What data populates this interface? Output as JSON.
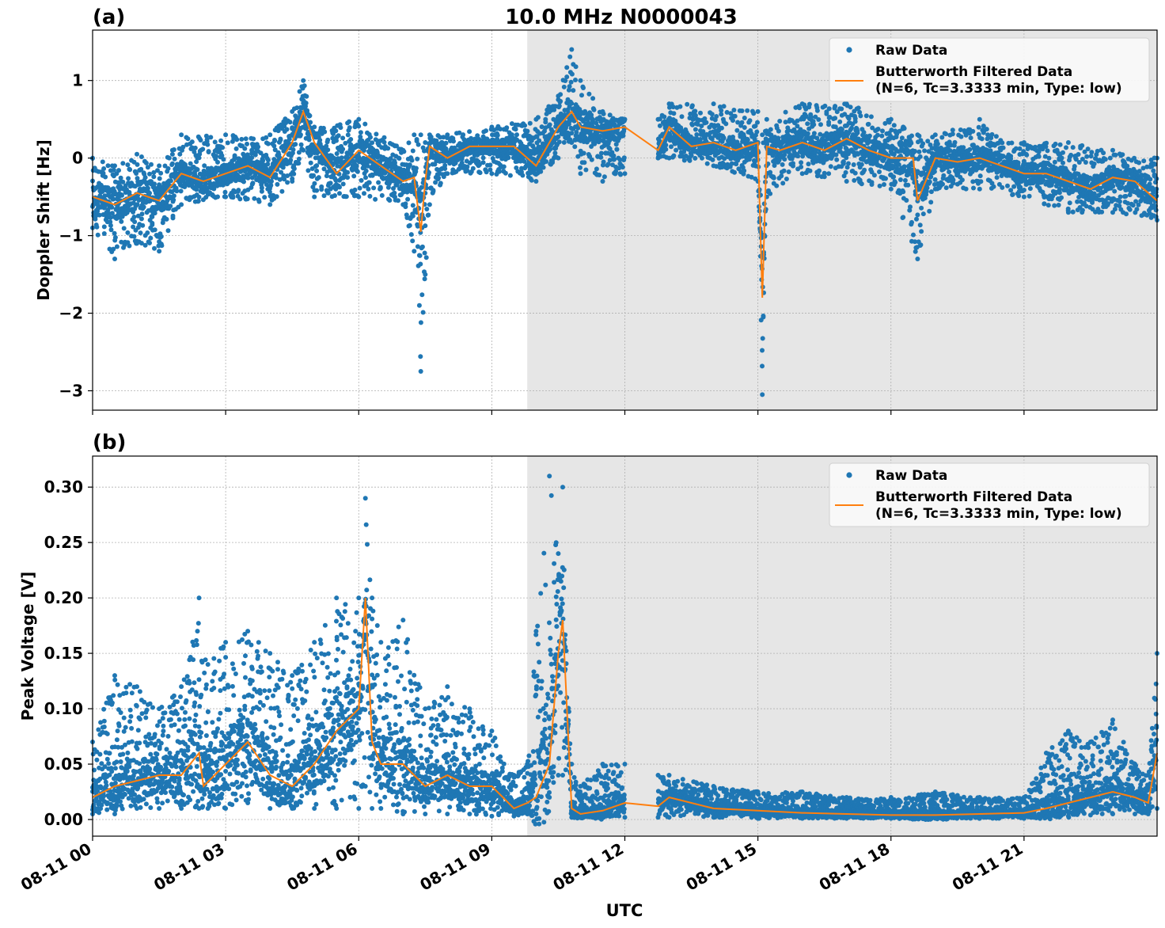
{
  "figure": {
    "title": "10.0 MHz N0000043",
    "xlabel": "UTC"
  },
  "colors": {
    "raw": "#1f77b4",
    "filtered": "#ff7f0e",
    "shade": "#e6e6e6",
    "grid": "#b0b0b0"
  },
  "chart_data": [
    {
      "type": "scatter",
      "panel_label": "(a)",
      "ylabel": "Doppler Shift [Hz]",
      "xlim_hours": [
        0,
        24.0
      ],
      "ylim": [
        -3.25,
        1.65
      ],
      "grid": true,
      "legend_position": "top-right",
      "x_ticks": [
        0,
        3,
        6,
        9,
        12,
        15,
        18,
        21
      ],
      "y_ticks": [
        1,
        0,
        -1,
        -2,
        -3
      ],
      "y_tick_labels": [
        "1",
        "0",
        "−1",
        "−2",
        "−3"
      ],
      "shaded_interval_hours": [
        9.8,
        24.0
      ],
      "data_gap_hours": [
        12.0,
        12.75
      ],
      "series": [
        {
          "name": "Raw Data",
          "style": "dots"
        },
        {
          "name": "Butterworth Filtered Data\n(N=6, Tc=3.3333 min, Type: low)",
          "style": "line"
        }
      ],
      "filtered_hours": [
        0.0,
        0.5,
        1.0,
        1.5,
        2.0,
        2.5,
        3.0,
        3.5,
        4.0,
        4.5,
        4.75,
        5.0,
        5.5,
        6.0,
        6.5,
        7.0,
        7.25,
        7.4,
        7.5,
        7.6,
        8.0,
        8.5,
        9.0,
        9.5,
        10.0,
        10.5,
        10.8,
        11.0,
        11.5,
        12.0,
        12.75,
        13.0,
        13.5,
        14.0,
        14.5,
        15.0,
        15.1,
        15.2,
        15.5,
        16.0,
        16.5,
        17.0,
        17.5,
        18.0,
        18.5,
        18.6,
        19.0,
        19.5,
        20.0,
        20.5,
        21.0,
        21.5,
        22.0,
        22.5,
        23.0,
        23.5,
        24.0
      ],
      "filtered_values": [
        -0.5,
        -0.6,
        -0.45,
        -0.55,
        -0.2,
        -0.3,
        -0.2,
        -0.1,
        -0.25,
        0.2,
        0.6,
        0.2,
        -0.2,
        0.1,
        -0.1,
        -0.3,
        -0.25,
        -0.95,
        -0.3,
        0.15,
        0.0,
        0.15,
        0.15,
        0.15,
        -0.1,
        0.4,
        0.6,
        0.4,
        0.35,
        0.4,
        0.1,
        0.4,
        0.15,
        0.2,
        0.1,
        0.2,
        -1.8,
        0.15,
        0.1,
        0.2,
        0.1,
        0.25,
        0.1,
        0.0,
        0.0,
        -0.55,
        0.0,
        -0.05,
        0.0,
        -0.1,
        -0.2,
        -0.2,
        -0.3,
        -0.4,
        -0.25,
        -0.3,
        -0.55
      ],
      "raw_envelope_hours": [
        0.0,
        0.5,
        1.0,
        1.5,
        2.0,
        3.0,
        4.0,
        4.5,
        4.75,
        5.0,
        6.0,
        7.0,
        7.25,
        7.4,
        7.5,
        7.6,
        8.0,
        9.0,
        10.0,
        10.5,
        10.8,
        11.0,
        11.5,
        12.0,
        12.75,
        13.0,
        14.0,
        15.0,
        15.1,
        15.2,
        16.0,
        17.0,
        18.0,
        18.6,
        19.0,
        20.0,
        21.0,
        22.0,
        23.0,
        24.0
      ],
      "raw_envelope_max": [
        0.0,
        -0.1,
        0.05,
        -0.1,
        0.3,
        0.3,
        0.3,
        0.6,
        1.0,
        0.4,
        0.5,
        0.1,
        0.3,
        0.3,
        0.2,
        0.3,
        0.3,
        0.4,
        0.5,
        0.8,
        1.4,
        1.0,
        0.6,
        0.5,
        0.5,
        0.7,
        0.7,
        0.6,
        0.3,
        0.5,
        0.7,
        0.7,
        0.5,
        0.3,
        0.3,
        0.5,
        0.2,
        0.2,
        0.1,
        0.0
      ],
      "raw_envelope_min": [
        -0.9,
        -1.3,
        -1.1,
        -1.2,
        -0.6,
        -0.5,
        -0.6,
        -0.3,
        0.1,
        -0.5,
        -0.5,
        -0.6,
        -1.2,
        -2.75,
        -1.5,
        -0.6,
        -0.2,
        -0.2,
        -0.3,
        0.0,
        0.2,
        -0.2,
        -0.3,
        -0.2,
        0.0,
        0.0,
        -0.1,
        -0.3,
        -3.05,
        -0.5,
        -0.2,
        -0.3,
        -0.4,
        -1.3,
        -0.4,
        -0.4,
        -0.5,
        -0.7,
        -0.7,
        -0.8
      ]
    },
    {
      "type": "scatter",
      "panel_label": "(b)",
      "ylabel": "Peak Voltage [V]",
      "xlim_hours": [
        0,
        24.0
      ],
      "ylim": [
        -0.015,
        0.328
      ],
      "grid": true,
      "legend_position": "top-right",
      "x_ticks": [
        0,
        3,
        6,
        9,
        12,
        15,
        18,
        21
      ],
      "x_tick_labels": [
        "08-11 00",
        "08-11 03",
        "08-11 06",
        "08-11 09",
        "08-11 12",
        "08-11 15",
        "08-11 18",
        "08-11 21"
      ],
      "y_ticks": [
        0.0,
        0.05,
        0.1,
        0.15,
        0.2,
        0.25,
        0.3
      ],
      "y_tick_labels": [
        "0.00",
        "0.05",
        "0.10",
        "0.15",
        "0.20",
        "0.25",
        "0.30"
      ],
      "shaded_interval_hours": [
        9.8,
        24.0
      ],
      "data_gap_hours": [
        12.0,
        12.75
      ],
      "series": [
        {
          "name": "Raw Data",
          "style": "dots"
        },
        {
          "name": "Butterworth Filtered Data\n(N=6, Tc=3.3333 min, Type: low)",
          "style": "line"
        }
      ],
      "filtered_hours": [
        0.0,
        0.5,
        1.0,
        1.5,
        2.0,
        2.4,
        2.5,
        3.0,
        3.5,
        4.0,
        4.5,
        5.0,
        5.5,
        6.0,
        6.15,
        6.3,
        6.5,
        7.0,
        7.5,
        8.0,
        8.5,
        9.0,
        9.5,
        9.8,
        10.0,
        10.3,
        10.5,
        10.6,
        10.8,
        11.0,
        11.5,
        12.0,
        12.75,
        13.0,
        14.0,
        15.0,
        16.0,
        17.0,
        18.0,
        19.0,
        20.0,
        21.0,
        21.5,
        22.0,
        22.5,
        23.0,
        23.5,
        23.8,
        24.0
      ],
      "filtered_values": [
        0.02,
        0.03,
        0.035,
        0.04,
        0.04,
        0.06,
        0.03,
        0.05,
        0.07,
        0.04,
        0.03,
        0.05,
        0.08,
        0.1,
        0.2,
        0.07,
        0.05,
        0.05,
        0.03,
        0.04,
        0.03,
        0.03,
        0.01,
        0.015,
        0.02,
        0.05,
        0.15,
        0.18,
        0.01,
        0.005,
        0.008,
        0.015,
        0.012,
        0.02,
        0.01,
        0.008,
        0.006,
        0.005,
        0.004,
        0.004,
        0.005,
        0.006,
        0.01,
        0.015,
        0.02,
        0.025,
        0.02,
        0.015,
        0.06
      ],
      "raw_envelope_hours": [
        0.0,
        0.5,
        1.0,
        1.5,
        2.0,
        2.4,
        2.6,
        3.0,
        3.5,
        4.0,
        4.5,
        5.0,
        5.5,
        6.0,
        6.15,
        6.3,
        6.5,
        7.0,
        7.5,
        8.0,
        8.5,
        9.0,
        9.5,
        9.8,
        10.0,
        10.3,
        10.5,
        10.6,
        10.8,
        11.0,
        11.5,
        12.0,
        12.75,
        13.0,
        14.0,
        15.0,
        16.0,
        17.0,
        18.0,
        19.0,
        20.0,
        21.0,
        21.5,
        22.0,
        22.5,
        23.0,
        23.5,
        23.8,
        24.0
      ],
      "raw_envelope_max": [
        0.07,
        0.13,
        0.12,
        0.1,
        0.12,
        0.2,
        0.14,
        0.16,
        0.17,
        0.15,
        0.13,
        0.16,
        0.2,
        0.2,
        0.29,
        0.2,
        0.16,
        0.18,
        0.1,
        0.12,
        0.1,
        0.08,
        0.04,
        0.05,
        0.17,
        0.31,
        0.24,
        0.3,
        0.05,
        0.03,
        0.05,
        0.05,
        0.04,
        0.04,
        0.03,
        0.025,
        0.025,
        0.02,
        0.02,
        0.025,
        0.02,
        0.02,
        0.06,
        0.08,
        0.07,
        0.09,
        0.05,
        0.04,
        0.15
      ],
      "raw_envelope_min": [
        0.005,
        0.005,
        0.01,
        0.01,
        0.01,
        0.01,
        0.01,
        0.01,
        0.015,
        0.01,
        0.01,
        0.01,
        0.01,
        0.01,
        0.03,
        0.01,
        0.01,
        0.005,
        0.005,
        0.005,
        0.005,
        0.003,
        0.003,
        0.005,
        0.005,
        0.02,
        0.04,
        0.04,
        0.002,
        0.002,
        0.002,
        0.002,
        0.002,
        0.002,
        0.002,
        0.001,
        0.001,
        0.001,
        0.001,
        0.001,
        0.001,
        0.001,
        0.002,
        0.003,
        0.004,
        0.005,
        0.005,
        0.005,
        0.01
      ]
    }
  ]
}
